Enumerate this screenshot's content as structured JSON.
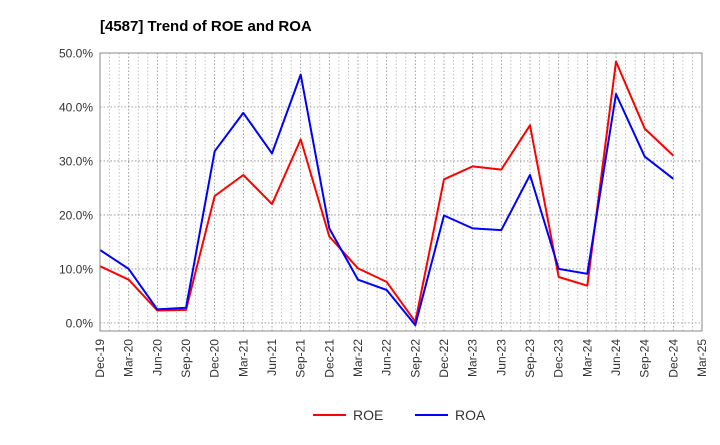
{
  "chart_data": {
    "type": "line",
    "title": "[4587]  Trend of ROE and ROA",
    "categories": [
      "Dec-19",
      "Mar-20",
      "Jun-20",
      "Sep-20",
      "Dec-20",
      "Mar-21",
      "Jun-21",
      "Sep-21",
      "Dec-21",
      "Mar-22",
      "Jun-22",
      "Sep-22",
      "Dec-22",
      "Mar-23",
      "Jun-23",
      "Sep-23",
      "Dec-23",
      "Mar-24",
      "Jun-24",
      "Sep-24",
      "Dec-24",
      "Mar-25"
    ],
    "ylim": [
      -1.5,
      50
    ],
    "yticks": [
      0,
      10,
      20,
      30,
      40,
      50
    ],
    "ytick_labels": [
      "0.0%",
      "10.0%",
      "20.0%",
      "30.0%",
      "40.0%",
      "50.0%"
    ],
    "grid": true,
    "legend_position": "bottom",
    "series": [
      {
        "name": "ROE",
        "color": "#ff0000",
        "values": [
          10.5,
          8.0,
          2.3,
          2.4,
          23.5,
          27.4,
          22.0,
          34.0,
          16.0,
          10.1,
          7.6,
          0.2,
          26.6,
          29.0,
          28.4,
          36.6,
          8.5,
          6.9,
          48.4,
          36.0,
          31.0,
          null
        ]
      },
      {
        "name": "ROA",
        "color": "#0000ff",
        "values": [
          13.5,
          10.0,
          2.5,
          2.8,
          31.8,
          38.9,
          31.4,
          46.0,
          17.5,
          8.0,
          6.1,
          -0.4,
          19.9,
          17.5,
          17.2,
          27.4,
          10.0,
          9.1,
          42.4,
          30.8,
          26.7,
          null
        ]
      }
    ]
  }
}
